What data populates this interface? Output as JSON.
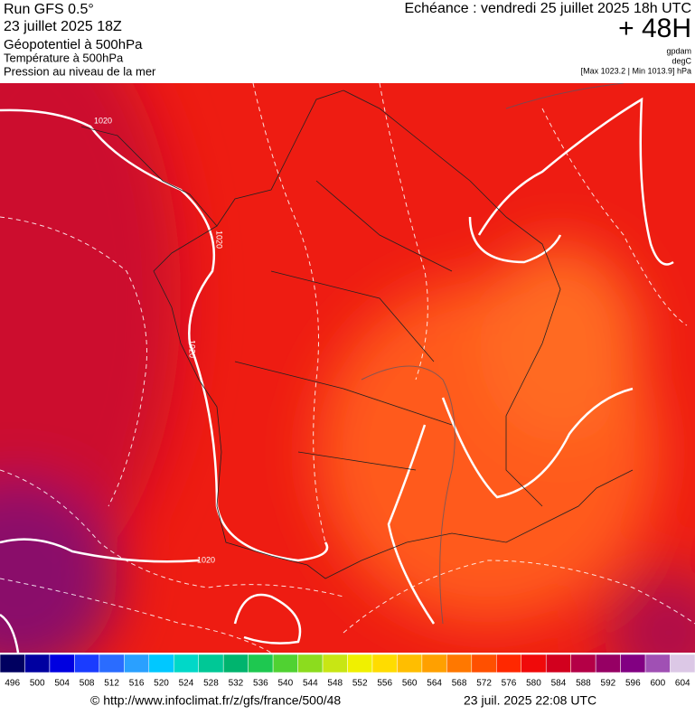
{
  "header": {
    "run": "Run GFS 0.5°",
    "date": "23 juillet 2025 18Z",
    "fields": [
      "Géopotentiel à 500hPa",
      "Température à 500hPa",
      "Pression au niveau de la mer"
    ],
    "echeance": "Echéance : vendredi 25 juillet 2025 18h UTC",
    "lead": "+ 48H",
    "units": [
      "gpdam",
      "degC",
      "[Max 1023.2 | Min 1013.9] hPa"
    ]
  },
  "map": {
    "isobar_labels": [
      "1020",
      "1020",
      "1020",
      "1020"
    ]
  },
  "colorbar": {
    "labels": [
      496,
      500,
      504,
      508,
      512,
      516,
      520,
      524,
      528,
      532,
      536,
      540,
      544,
      548,
      552,
      556,
      560,
      564,
      568,
      572,
      576,
      580,
      584,
      588,
      592,
      596,
      600,
      604
    ],
    "colors": [
      "#000060",
      "#0000a0",
      "#0000e0",
      "#1a3cff",
      "#2a6cff",
      "#2aa0ff",
      "#00c8ff",
      "#00d8c8",
      "#00c896",
      "#00b46e",
      "#1ec850",
      "#50d232",
      "#8cdc1e",
      "#c8e614",
      "#f0f000",
      "#ffdc00",
      "#ffbe00",
      "#ffa000",
      "#ff7800",
      "#ff5000",
      "#ff2800",
      "#f00a0a",
      "#d2001e",
      "#b40046",
      "#960064",
      "#820082",
      "#a050b4",
      "#dcc8e6"
    ]
  },
  "footer": {
    "url": "© http://www.infoclimat.fr/z/gfs/france/500/48",
    "timestamp": "23 juil. 2025 22:08 UTC"
  }
}
